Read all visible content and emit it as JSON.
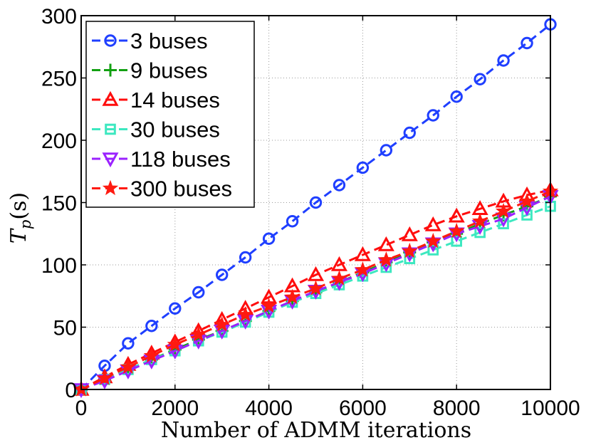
{
  "chart_data": {
    "type": "line",
    "title": "",
    "xlabel": "Number of ADMM iterations",
    "ylabel_main": "T",
    "ylabel_sub": "p",
    "ylabel_rest": "(s)",
    "xlim": [
      0,
      10000
    ],
    "ylim": [
      0,
      300
    ],
    "xticks": [
      0,
      2000,
      4000,
      6000,
      8000,
      10000
    ],
    "yticks": [
      0,
      50,
      100,
      150,
      200,
      250,
      300
    ],
    "grid": true,
    "legend_position": "top-left",
    "x": [
      0,
      500,
      1000,
      1500,
      2000,
      2500,
      3000,
      3500,
      4000,
      4500,
      5000,
      5500,
      6000,
      6500,
      7000,
      7500,
      8000,
      8500,
      9000,
      9500,
      10000
    ],
    "series": [
      {
        "name": "3 buses",
        "color": "#1f3fff",
        "marker": "circle",
        "values": [
          0,
          19,
          37,
          51,
          65,
          78,
          92,
          106,
          121,
          135,
          150,
          164,
          178,
          192,
          206,
          220,
          235,
          249,
          264,
          278,
          293
        ]
      },
      {
        "name": "9 buses",
        "color": "#12a012",
        "marker": "plus",
        "values": [
          0,
          8,
          16,
          24,
          32,
          40,
          47,
          55,
          63,
          71,
          78,
          86,
          94,
          102,
          110,
          118,
          125,
          133,
          140,
          147,
          155
        ]
      },
      {
        "name": "14 buses",
        "color": "#ff0d0d",
        "marker": "triangle-up",
        "values": [
          0,
          10,
          20,
          29,
          38,
          47,
          56,
          65,
          74,
          83,
          92,
          100,
          108,
          116,
          124,
          132,
          139,
          145,
          151,
          156,
          160
        ]
      },
      {
        "name": "30 buses",
        "color": "#3de8c0",
        "marker": "square",
        "values": [
          0,
          8,
          16,
          24,
          31,
          39,
          46,
          54,
          62,
          70,
          77,
          84,
          91,
          98,
          105,
          112,
          119,
          126,
          133,
          140,
          147
        ]
      },
      {
        "name": "118 buses",
        "color": "#9b22ff",
        "marker": "triangle-down",
        "values": [
          0,
          7,
          15,
          23,
          31,
          39,
          47,
          55,
          63,
          71,
          79,
          86,
          93,
          101,
          109,
          117,
          125,
          131,
          137,
          146,
          155
        ]
      },
      {
        "name": "300 buses",
        "color": "#ff1a10",
        "marker": "star",
        "values": [
          0,
          9,
          18,
          27,
          36,
          44,
          52,
          60,
          67,
          74,
          81,
          89,
          96,
          104,
          111,
          119,
          127,
          135,
          143,
          151,
          159
        ]
      }
    ]
  }
}
